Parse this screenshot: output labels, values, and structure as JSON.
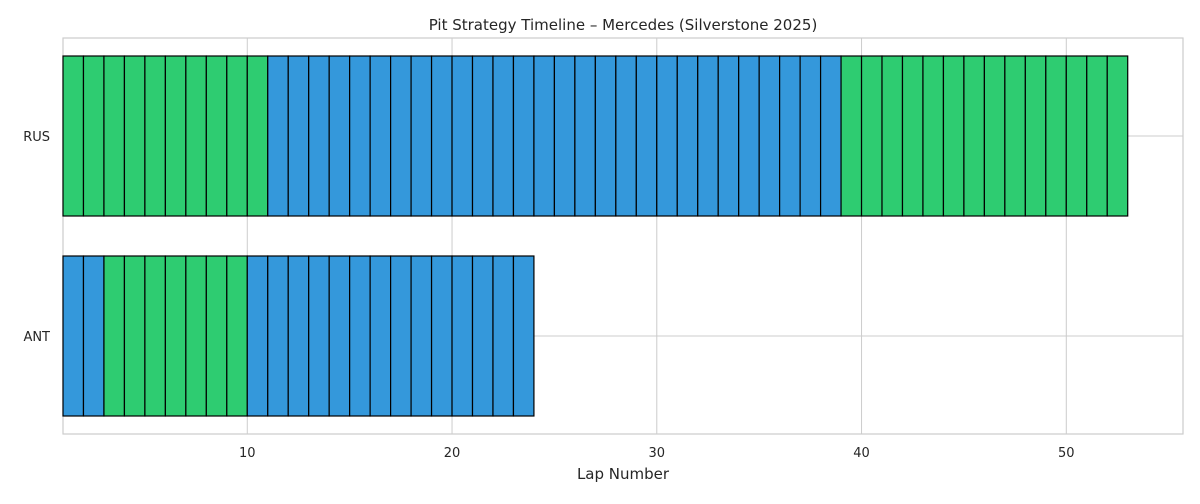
{
  "chart_data": {
    "type": "bar",
    "title": "Pit Strategy Timeline – Mercedes (Silverstone 2025)",
    "xlabel": "Lap Number",
    "ylabel": "",
    "xlim": [
      1,
      55.7
    ],
    "x_ticks": [
      10,
      20,
      30,
      40,
      50
    ],
    "grid": true,
    "categories": [
      "RUS",
      "ANT"
    ],
    "compound_colors": {
      "medium_stint": "#3498db",
      "hard_stint": "#2ecc71"
    },
    "edge_color": "#000000",
    "drivers": [
      {
        "name": "RUS",
        "laps_completed": 52,
        "stints": [
          {
            "compound": "hard_stint",
            "start_lap": 1,
            "end_lap": 10
          },
          {
            "compound": "medium_stint",
            "start_lap": 11,
            "end_lap": 38
          },
          {
            "compound": "hard_stint",
            "start_lap": 39,
            "end_lap": 52
          }
        ]
      },
      {
        "name": "ANT",
        "laps_completed": 23,
        "stints": [
          {
            "compound": "medium_stint",
            "start_lap": 1,
            "end_lap": 2
          },
          {
            "compound": "hard_stint",
            "start_lap": 3,
            "end_lap": 9
          },
          {
            "compound": "medium_stint",
            "start_lap": 10,
            "end_lap": 23
          }
        ]
      }
    ]
  }
}
